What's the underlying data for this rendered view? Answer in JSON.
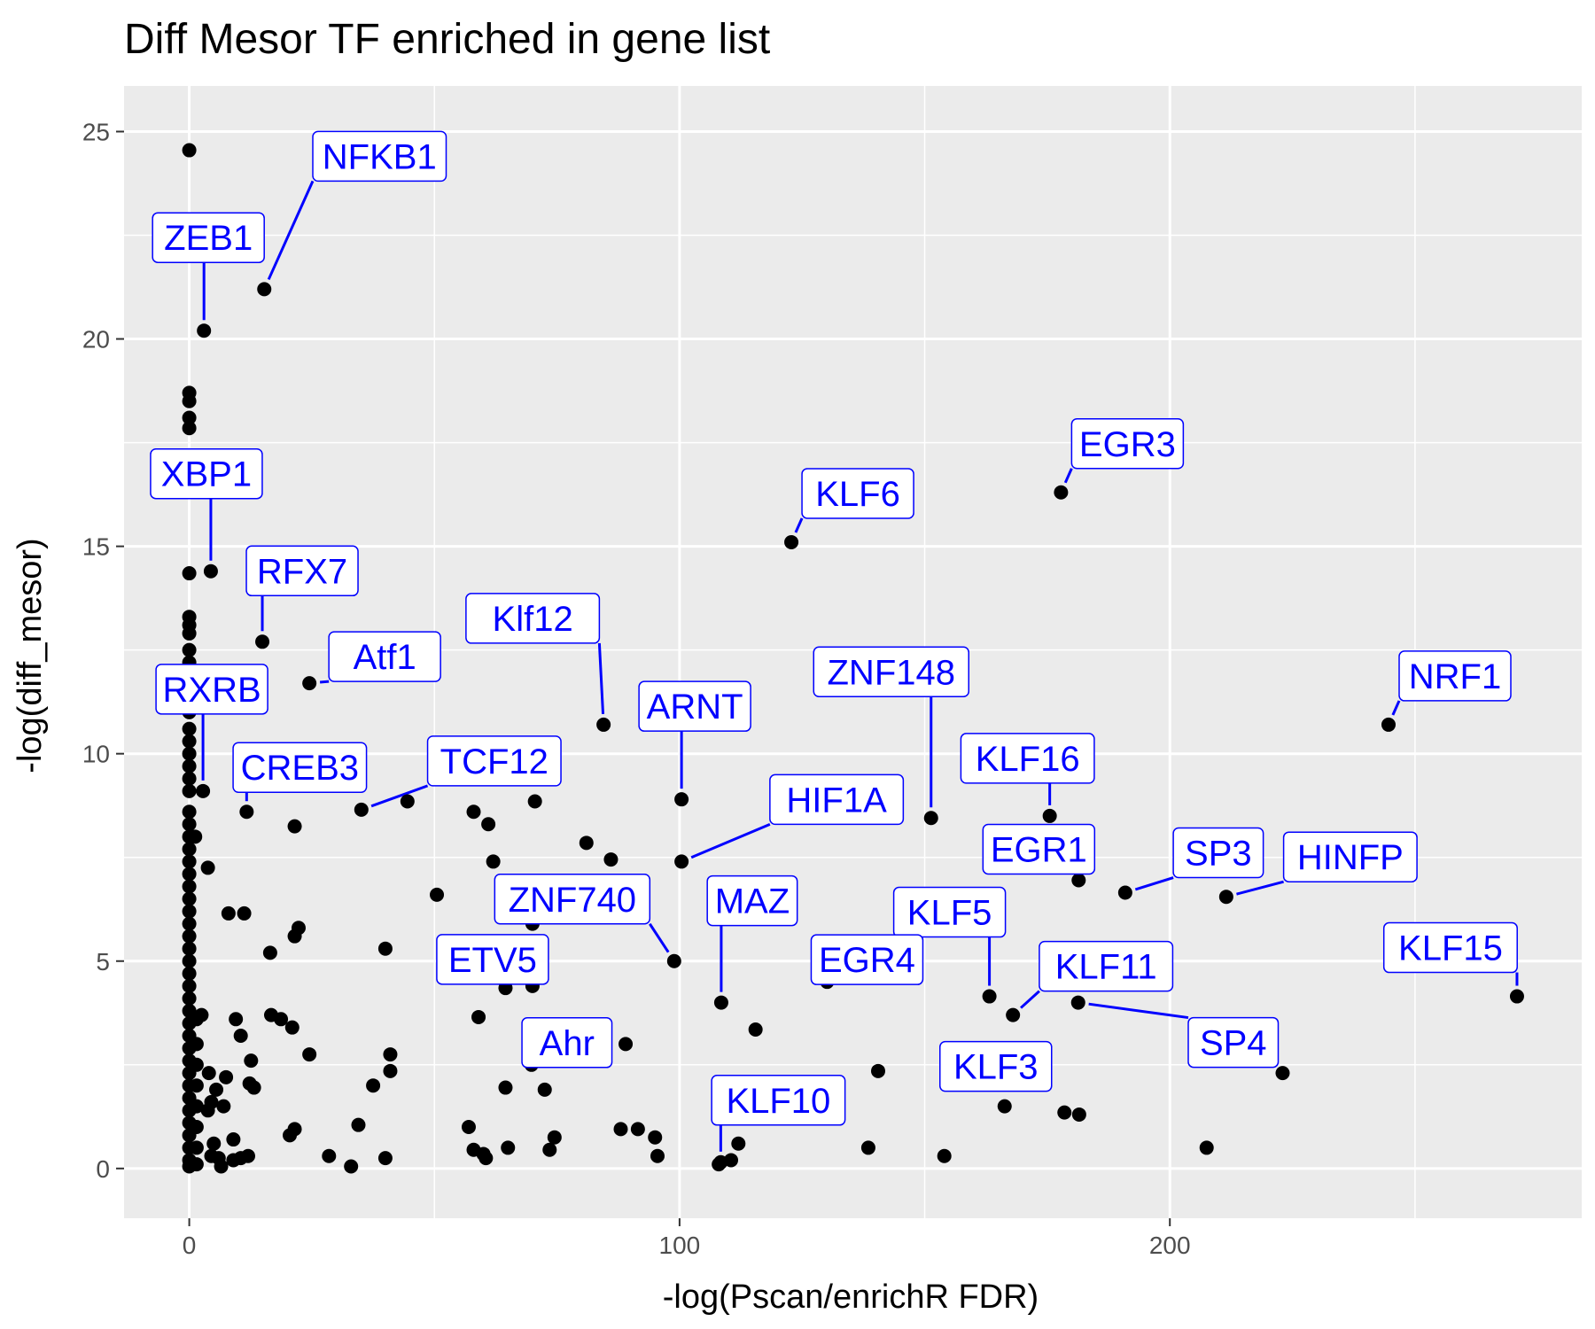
{
  "chart_data": {
    "type": "scatter",
    "title": "Diff Mesor TF enriched in gene list",
    "xlabel": "-log(Pscan/enrichR FDR)",
    "ylabel": "-log(diff_mesor)",
    "xlim": [
      -13.3,
      284
    ],
    "ylim": [
      -1.2,
      26.1
    ],
    "x_ticks": [
      0,
      100,
      200
    ],
    "y_ticks": [
      0,
      5,
      10,
      15,
      20,
      25
    ],
    "grid": true,
    "legend": "none",
    "colors": {
      "panel": "#ebebeb",
      "grid": "#ffffff",
      "point": "#000000",
      "label_text": "#0000ff",
      "label_border": "#0000ff",
      "label_fill": "#ffffff",
      "axis_text": "#4d4d4d"
    },
    "labeled_points": [
      {
        "name": "NFKB1",
        "x": 15.3,
        "y": 21.2
      },
      {
        "name": "ZEB1",
        "x": 3.0,
        "y": 20.2
      },
      {
        "name": "XBP1",
        "x": 4.4,
        "y": 14.4
      },
      {
        "name": "RFX7",
        "x": 14.9,
        "y": 12.7
      },
      {
        "name": "Atf1",
        "x": 24.5,
        "y": 11.7
      },
      {
        "name": "RXRB",
        "x": 2.8,
        "y": 9.1
      },
      {
        "name": "CREB3",
        "x": 11.7,
        "y": 8.6
      },
      {
        "name": "TCF12",
        "x": 35.1,
        "y": 8.65
      },
      {
        "name": "Klf12",
        "x": 84.5,
        "y": 10.7
      },
      {
        "name": "ARNT",
        "x": 100.4,
        "y": 8.9
      },
      {
        "name": "HIF1A",
        "x": 100.4,
        "y": 7.4
      },
      {
        "name": "ZNF740",
        "x": 98.9,
        "y": 5.0
      },
      {
        "name": "ETV5",
        "x": 70.0,
        "y": 4.4
      },
      {
        "name": "Ahr",
        "x": 69.8,
        "y": 2.5
      },
      {
        "name": "MAZ",
        "x": 108.5,
        "y": 4.0
      },
      {
        "name": "KLF10",
        "x": 108.4,
        "y": 0.15
      },
      {
        "name": "KLF6",
        "x": 122.8,
        "y": 15.1
      },
      {
        "name": "ZNF148",
        "x": 151.3,
        "y": 8.45
      },
      {
        "name": "KLF16",
        "x": 175.5,
        "y": 8.5
      },
      {
        "name": "EGR1",
        "x": 181.4,
        "y": 6.95
      },
      {
        "name": "KLF5",
        "x": 163.2,
        "y": 4.15
      },
      {
        "name": "EGR4",
        "x": 130.1,
        "y": 4.5
      },
      {
        "name": "KLF3",
        "x": 166.3,
        "y": 1.5
      },
      {
        "name": "EGR3",
        "x": 177.8,
        "y": 16.3
      },
      {
        "name": "KLF11",
        "x": 168.0,
        "y": 3.7
      },
      {
        "name": "SP4",
        "x": 181.3,
        "y": 4.0
      },
      {
        "name": "SP3",
        "x": 190.9,
        "y": 6.65
      },
      {
        "name": "HINFP",
        "x": 211.5,
        "y": 6.55
      },
      {
        "name": "NRF1",
        "x": 244.6,
        "y": 10.7
      },
      {
        "name": "KLF15",
        "x": 270.8,
        "y": 4.15
      }
    ],
    "other_points": [
      [
        0,
        24.55
      ],
      [
        0,
        18.7
      ],
      [
        0,
        18.5
      ],
      [
        0,
        18.1
      ],
      [
        0,
        17.85
      ],
      [
        0,
        14.35
      ],
      [
        0,
        13.3
      ],
      [
        0,
        13.1
      ],
      [
        0,
        12.9
      ],
      [
        0,
        12.5
      ],
      [
        0,
        12.2
      ],
      [
        0,
        11.9
      ],
      [
        0,
        11.6
      ],
      [
        0,
        11.3
      ],
      [
        0,
        11.0
      ],
      [
        0,
        10.6
      ],
      [
        0,
        10.3
      ],
      [
        0,
        10.0
      ],
      [
        0,
        9.7
      ],
      [
        0,
        9.4
      ],
      [
        0,
        9.1
      ],
      [
        0,
        8.6
      ],
      [
        0,
        8.3
      ],
      [
        0,
        8.0
      ],
      [
        0,
        7.7
      ],
      [
        0,
        7.4
      ],
      [
        0,
        7.1
      ],
      [
        0,
        6.8
      ],
      [
        0,
        6.5
      ],
      [
        0,
        6.2
      ],
      [
        0,
        5.9
      ],
      [
        0,
        5.6
      ],
      [
        0,
        5.3
      ],
      [
        0,
        5.0
      ],
      [
        0,
        4.7
      ],
      [
        0,
        4.4
      ],
      [
        0,
        4.1
      ],
      [
        0,
        3.8
      ],
      [
        0,
        3.5
      ],
      [
        0,
        3.2
      ],
      [
        0,
        2.9
      ],
      [
        0,
        2.6
      ],
      [
        0,
        2.3
      ],
      [
        0,
        2.0
      ],
      [
        0,
        1.7
      ],
      [
        0,
        1.4
      ],
      [
        0,
        1.1
      ],
      [
        0,
        0.8
      ],
      [
        0,
        0.5
      ],
      [
        0,
        0.2
      ],
      [
        0,
        0.05
      ],
      [
        1.5,
        0.1
      ],
      [
        1.5,
        0.5
      ],
      [
        1.5,
        1.0
      ],
      [
        1.5,
        1.5
      ],
      [
        1.5,
        2.0
      ],
      [
        1.5,
        2.5
      ],
      [
        1.5,
        3.0
      ],
      [
        1.5,
        3.6
      ],
      [
        1.2,
        8.0
      ],
      [
        2.5,
        3.7
      ],
      [
        3.8,
        7.25
      ],
      [
        4.0,
        2.3
      ],
      [
        3.8,
        1.4
      ],
      [
        4.5,
        1.6
      ],
      [
        5.0,
        0.6
      ],
      [
        5.5,
        1.9
      ],
      [
        7.0,
        1.5
      ],
      [
        7.5,
        2.2
      ],
      [
        4.5,
        0.3
      ],
      [
        6.0,
        0.25
      ],
      [
        6.5,
        0.05
      ],
      [
        9.0,
        0.7
      ],
      [
        8.0,
        6.15
      ],
      [
        11.2,
        6.15
      ],
      [
        9.5,
        3.6
      ],
      [
        10.5,
        3.2
      ],
      [
        12.3,
        2.05
      ],
      [
        12.6,
        2.6
      ],
      [
        13.2,
        1.95
      ],
      [
        9.0,
        0.2
      ],
      [
        10.5,
        0.25
      ],
      [
        12.0,
        0.3
      ],
      [
        16.5,
        5.2
      ],
      [
        16.7,
        3.7
      ],
      [
        18.7,
        3.6
      ],
      [
        21.0,
        3.4
      ],
      [
        21.5,
        5.6
      ],
      [
        22.3,
        5.8
      ],
      [
        21.5,
        8.25
      ],
      [
        24.5,
        2.75
      ],
      [
        20.5,
        0.8
      ],
      [
        21.5,
        0.95
      ],
      [
        28.5,
        0.3
      ],
      [
        34.5,
        1.05
      ],
      [
        33.0,
        0.05
      ],
      [
        40.0,
        5.3
      ],
      [
        40.0,
        0.25
      ],
      [
        37.5,
        2.0
      ],
      [
        41.0,
        2.75
      ],
      [
        41.0,
        2.35
      ],
      [
        44.5,
        8.85
      ],
      [
        50.5,
        6.6
      ],
      [
        58.0,
        8.6
      ],
      [
        61.0,
        8.3
      ],
      [
        62.0,
        7.4
      ],
      [
        59.0,
        3.65
      ],
      [
        57.0,
        1.0
      ],
      [
        58.0,
        0.45
      ],
      [
        60.0,
        0.35
      ],
      [
        60.5,
        0.25
      ],
      [
        64.5,
        4.35
      ],
      [
        64.5,
        1.95
      ],
      [
        65.0,
        0.5
      ],
      [
        68.5,
        4.85
      ],
      [
        70.0,
        5.9
      ],
      [
        70.5,
        8.85
      ],
      [
        72.5,
        1.9
      ],
      [
        73.5,
        0.45
      ],
      [
        74.5,
        0.75
      ],
      [
        81.0,
        7.85
      ],
      [
        86.0,
        7.45
      ],
      [
        89.0,
        3.0
      ],
      [
        88.0,
        0.95
      ],
      [
        91.5,
        0.95
      ],
      [
        95.0,
        0.75
      ],
      [
        95.5,
        0.3
      ],
      [
        108.0,
        0.1
      ],
      [
        110.5,
        0.2
      ],
      [
        112.0,
        0.6
      ],
      [
        115.5,
        3.35
      ],
      [
        129.0,
        1.25
      ],
      [
        138.5,
        0.5
      ],
      [
        140.5,
        2.35
      ],
      [
        154.0,
        0.3
      ],
      [
        178.5,
        1.35
      ],
      [
        181.5,
        1.3
      ],
      [
        207.5,
        0.5
      ],
      [
        223.0,
        2.3
      ]
    ]
  }
}
